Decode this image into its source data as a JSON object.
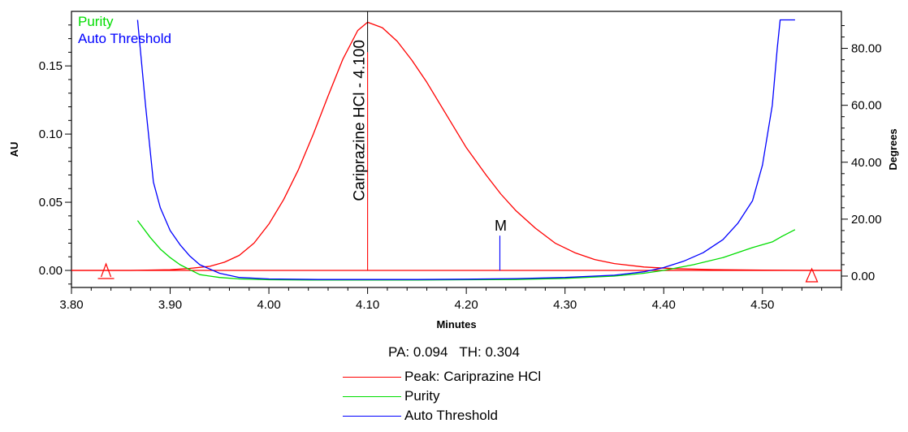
{
  "chart_data": {
    "type": "line",
    "xlabel": "Minutes",
    "ylabel_left": "AU",
    "ylabel_right": "Degrees",
    "xlim": [
      3.8,
      4.58
    ],
    "ylim_left": [
      -0.0125,
      0.19
    ],
    "ylim_right": [
      -4,
      93
    ],
    "x_ticks": [
      "3.80",
      "3.90",
      "4.00",
      "4.10",
      "4.20",
      "4.30",
      "4.40",
      "4.50"
    ],
    "y_ticks_left": [
      "0.00",
      "0.05",
      "0.10",
      "0.15"
    ],
    "y_ticks_right": [
      "0.00",
      "20.00",
      "40.00",
      "60.00",
      "80.00"
    ],
    "grid": false,
    "in_plot_legend": [
      "Purity",
      "Auto Threshold"
    ],
    "peak_label": "Cariprazine HCl - 4.100",
    "marker_label": "M",
    "colors": {
      "peak": "#ff0000",
      "purity": "#00dd00",
      "threshold": "#0000ff",
      "axis": "#000000"
    },
    "series": [
      {
        "name": "Peak: Cariprazine HCl",
        "axis": "left",
        "x": [
          3.8,
          3.86,
          3.9,
          3.92,
          3.94,
          3.955,
          3.97,
          3.985,
          4.0,
          4.015,
          4.03,
          4.045,
          4.06,
          4.075,
          4.09,
          4.1,
          4.115,
          4.13,
          4.145,
          4.16,
          4.18,
          4.2,
          4.22,
          4.235,
          4.25,
          4.27,
          4.29,
          4.31,
          4.33,
          4.35,
          4.38,
          4.41,
          4.45,
          4.5,
          4.55,
          4.58
        ],
        "y": [
          0.0,
          0.0,
          0.0005,
          0.0015,
          0.003,
          0.006,
          0.011,
          0.02,
          0.034,
          0.052,
          0.074,
          0.1,
          0.128,
          0.155,
          0.176,
          0.182,
          0.178,
          0.168,
          0.154,
          0.138,
          0.114,
          0.09,
          0.07,
          0.056,
          0.044,
          0.031,
          0.02,
          0.013,
          0.008,
          0.005,
          0.0025,
          0.0013,
          0.0006,
          0.0002,
          0.0,
          0.0
        ]
      },
      {
        "name": "Purity",
        "axis": "right",
        "x": [
          3.867,
          3.88,
          3.89,
          3.9,
          3.91,
          3.93,
          3.95,
          3.97,
          4.0,
          4.05,
          4.1,
          4.15,
          4.2,
          4.25,
          4.3,
          4.35,
          4.38,
          4.4,
          4.43,
          4.46,
          4.49,
          4.51,
          4.52,
          4.533
        ],
        "y": [
          19.5,
          13.5,
          9.5,
          6.5,
          4.0,
          0.5,
          -0.5,
          -1.0,
          -1.3,
          -1.4,
          -1.4,
          -1.4,
          -1.3,
          -1.2,
          -0.8,
          0.0,
          1.0,
          2.0,
          4.0,
          6.5,
          10.0,
          12.0,
          14.0,
          16.3
        ]
      },
      {
        "name": "Auto Threshold",
        "axis": "right",
        "x": [
          3.867,
          3.875,
          3.883,
          3.89,
          3.9,
          3.91,
          3.92,
          3.93,
          3.95,
          3.97,
          4.0,
          4.05,
          4.1,
          4.15,
          4.2,
          4.25,
          4.3,
          4.35,
          4.38,
          4.4,
          4.42,
          4.44,
          4.46,
          4.475,
          4.49,
          4.5,
          4.51,
          4.515,
          4.518,
          4.533
        ],
        "y": [
          90,
          60,
          33,
          24,
          16,
          11,
          7,
          4,
          1,
          -0.5,
          -1.0,
          -1.2,
          -1.2,
          -1.2,
          -1.1,
          -0.9,
          -0.5,
          0.3,
          1.5,
          3.0,
          5.2,
          8.2,
          12.8,
          18.5,
          26.5,
          39,
          60,
          80,
          90,
          90
        ]
      }
    ],
    "markers": [
      {
        "label": "Cariprazine HCl - 4.100",
        "x": 4.1,
        "y_top": 0.19,
        "y_bottom": 0.0
      },
      {
        "label": "M",
        "x": 4.234,
        "y_top": 0.0255,
        "y_bottom": 0.0
      }
    ],
    "baseline_triangles_x": [
      3.835,
      4.55
    ]
  },
  "footer": {
    "pa_label": "PA:",
    "pa_value": "0.094",
    "th_label": "TH:",
    "th_value": "0.304",
    "legend": [
      {
        "label": "Peak: Cariprazine HCl",
        "color": "#ff0000"
      },
      {
        "label": "Purity",
        "color": "#00dd00"
      },
      {
        "label": "Auto Threshold",
        "color": "#0000ff"
      }
    ]
  }
}
